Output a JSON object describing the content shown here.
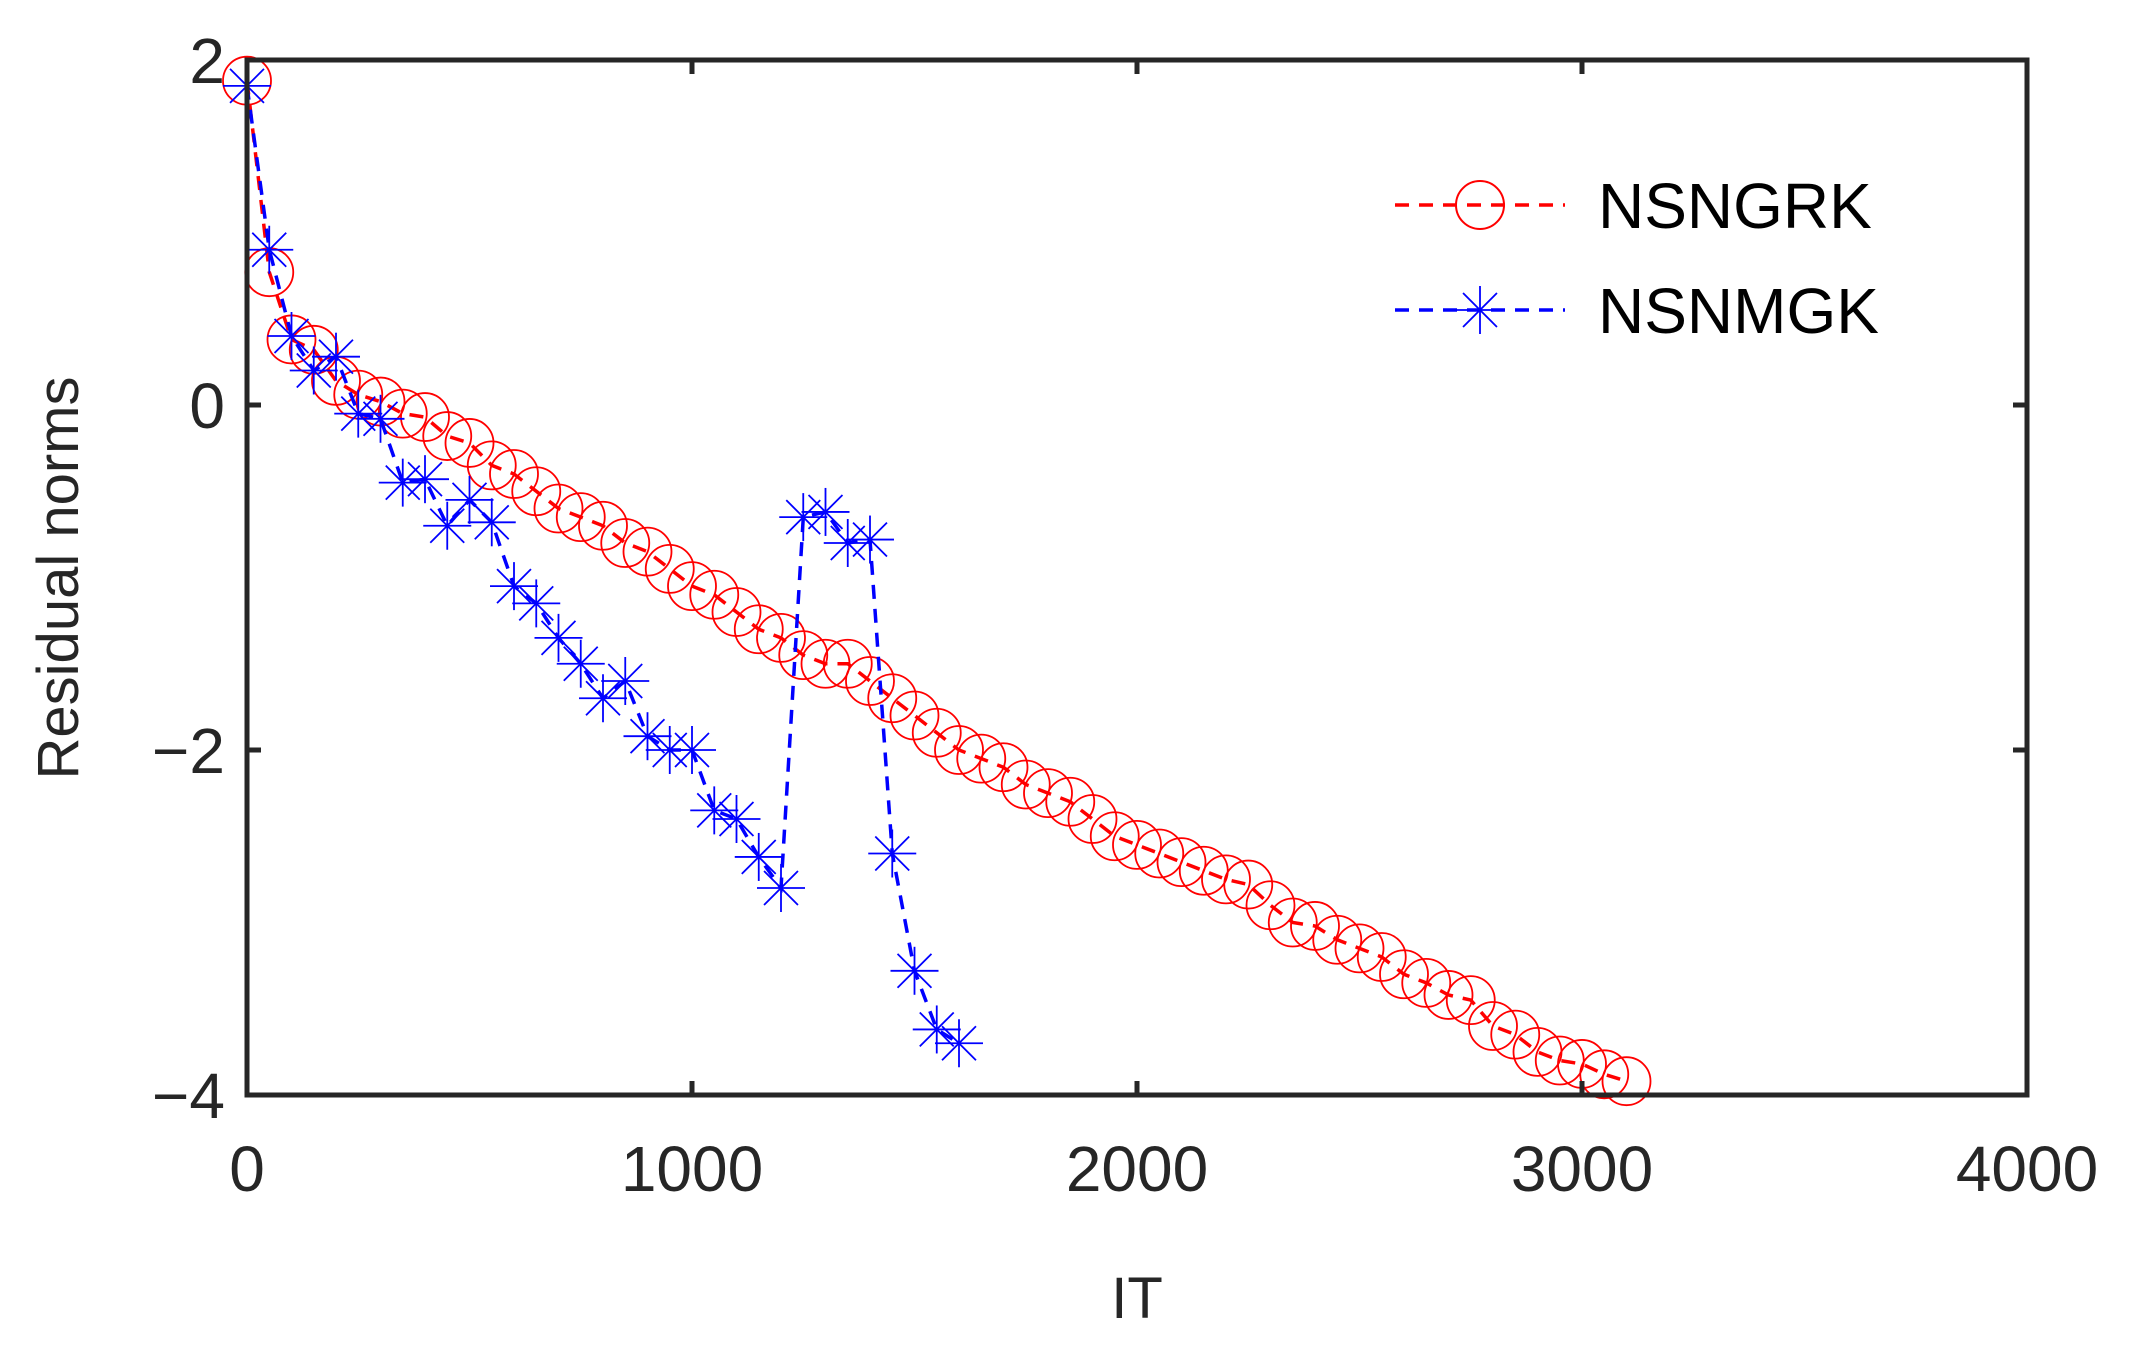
{
  "chart_data": {
    "type": "line",
    "title": "",
    "xlabel": "IT",
    "ylabel": "Residual norms",
    "xlim": [
      0,
      4000
    ],
    "ylim": [
      -4,
      2
    ],
    "xticks": [
      0,
      1000,
      2000,
      3000,
      4000
    ],
    "yticks": [
      2,
      0,
      -2,
      -4
    ],
    "ytick_labels": [
      "2",
      "0",
      "−2",
      "−4"
    ],
    "grid": false,
    "legend_position": "top-right",
    "series": [
      {
        "name": "NSNGRK",
        "color": "#ff0000",
        "marker": "circle",
        "line_style": "dashed",
        "x": [
          0,
          50,
          100,
          150,
          200,
          250,
          300,
          350,
          400,
          450,
          500,
          550,
          600,
          650,
          700,
          750,
          800,
          850,
          900,
          950,
          1000,
          1050,
          1100,
          1150,
          1200,
          1250,
          1300,
          1350,
          1400,
          1450,
          1500,
          1550,
          1600,
          1650,
          1700,
          1750,
          1800,
          1850,
          1900,
          1950,
          2000,
          2050,
          2100,
          2150,
          2200,
          2250,
          2300,
          2350,
          2400,
          2450,
          2500,
          2550,
          2600,
          2650,
          2700,
          2750,
          2800,
          2850,
          2900,
          2950,
          3000,
          3050,
          3100
        ],
        "y": [
          1.88,
          0.77,
          0.38,
          0.32,
          0.14,
          0.06,
          0.02,
          -0.05,
          -0.07,
          -0.18,
          -0.22,
          -0.35,
          -0.4,
          -0.5,
          -0.6,
          -0.65,
          -0.7,
          -0.8,
          -0.85,
          -0.95,
          -1.05,
          -1.1,
          -1.2,
          -1.3,
          -1.35,
          -1.45,
          -1.5,
          -1.5,
          -1.6,
          -1.7,
          -1.8,
          -1.9,
          -2.0,
          -2.05,
          -2.1,
          -2.2,
          -2.25,
          -2.3,
          -2.4,
          -2.5,
          -2.55,
          -2.6,
          -2.65,
          -2.7,
          -2.75,
          -2.78,
          -2.9,
          -3.0,
          -3.02,
          -3.1,
          -3.15,
          -3.2,
          -3.3,
          -3.35,
          -3.42,
          -3.45,
          -3.6,
          -3.65,
          -3.75,
          -3.8,
          -3.82,
          -3.88,
          -3.92
        ]
      },
      {
        "name": "NSNMGK",
        "color": "#0000ff",
        "marker": "asterisk",
        "line_style": "dashed",
        "x": [
          0,
          50,
          100,
          150,
          200,
          250,
          300,
          350,
          400,
          450,
          500,
          550,
          600,
          650,
          700,
          750,
          800,
          850,
          900,
          950,
          1000,
          1050,
          1100,
          1150,
          1200,
          1250,
          1300,
          1350,
          1400,
          1450,
          1500,
          1550,
          1600
        ],
        "y": [
          1.85,
          0.9,
          0.4,
          0.2,
          0.28,
          -0.05,
          -0.08,
          -0.45,
          -0.43,
          -0.7,
          -0.55,
          -0.68,
          -1.05,
          -1.15,
          -1.35,
          -1.5,
          -1.7,
          -1.6,
          -1.92,
          -2.0,
          -2.0,
          -2.35,
          -2.4,
          -2.62,
          -2.8,
          -0.65,
          -0.62,
          -0.8,
          -0.78,
          -2.6,
          -3.28,
          -3.62,
          -3.7
        ]
      }
    ]
  }
}
